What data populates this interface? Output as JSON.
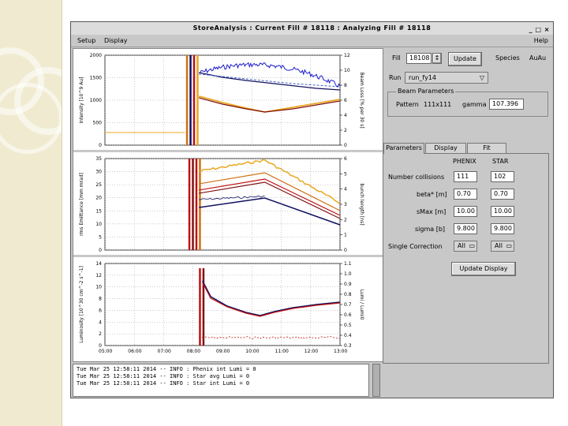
{
  "window": {
    "title": "StoreAnalysis : Current Fill # 18118 : Analyzing Fill # 18118",
    "controls": "_ □ ×"
  },
  "menu": {
    "setup": "Setup",
    "display": "Display",
    "help": "Help"
  },
  "fill": {
    "label": "Fill",
    "value": "18108",
    "button": "Update"
  },
  "species": {
    "label": "Species",
    "value": "AuAu"
  },
  "run": {
    "label": "Run",
    "value": "run_fy14"
  },
  "beam": {
    "group": "Beam Parameters",
    "pattern_label": "Pattern",
    "pattern_value": "111x111",
    "gamma_label": "gamma",
    "gamma_value": "107.396"
  },
  "tabs": [
    "Parameters",
    "Display",
    "Fit"
  ],
  "params": {
    "col_phenix": "PHENIX",
    "col_star": "STAR",
    "rows": [
      {
        "label": "Number collisions",
        "phenix": "111",
        "star": "102"
      },
      {
        "label": "beta* [m]",
        "phenix": "0.70",
        "star": "0.70"
      },
      {
        "label": "sMax [m]",
        "phenix": "10.00",
        "star": "10.00"
      },
      {
        "label": "sigma [b]",
        "phenix": "9.800",
        "star": "9.800"
      }
    ],
    "correction_label": "Single Correction",
    "correction_phenix": "All",
    "correction_star": "All",
    "update_display": "Update Display"
  },
  "log": [
    "Tue Mar 25 12:58:11 2014 -- INFO : Phenix int Lumi = 0",
    "Tue Mar 25 12:58:11 2014 -- INFO : Star avg Lumi = 0",
    "Tue Mar 25 12:58:11 2014 -- INFO : Star int Lumi = 0"
  ],
  "plots": {
    "p1": {
      "ylabel": "Intensity [10^9 Au]",
      "y2label": "Beam Loss [% per 30 s]",
      "yticks": [
        "0",
        "500",
        "1000",
        "1500",
        "2000"
      ],
      "y2ticks": [
        "0",
        "2",
        "4",
        "6",
        "8",
        "10",
        "12"
      ]
    },
    "p2": {
      "ylabel": "rms Emittance [mm mrad]",
      "y2label": "bunch length [ns]",
      "yticks": [
        "0",
        "5",
        "10",
        "15",
        "20",
        "25",
        "30",
        "35"
      ],
      "y2ticks": [
        "0",
        "1",
        "2",
        "3",
        "4",
        "5",
        "6"
      ]
    },
    "p3": {
      "ylabel": "Luminosity [10^30 cm^-2 s^-1]",
      "y2label": "Lumi / Lumi0",
      "yticks": [
        "0",
        "2",
        "4",
        "6",
        "8",
        "10",
        "12",
        "14"
      ],
      "y2ticks": [
        "0.3",
        "0.4",
        "0.5",
        "0.6",
        "0.7",
        "0.8",
        "0.9",
        "1.0",
        "1.1"
      ]
    },
    "xticks": [
      "05:00",
      "06:00",
      "07:00",
      "08:00",
      "09:00",
      "10:00",
      "11:00",
      "12:00",
      "13:00"
    ]
  },
  "colors": {
    "blue": "#1a1acc",
    "navy": "#101060",
    "gold": "#e8a820",
    "orange": "#d07010",
    "red": "#c01010",
    "darkred": "#801010",
    "dashblue": "#4060c0"
  }
}
